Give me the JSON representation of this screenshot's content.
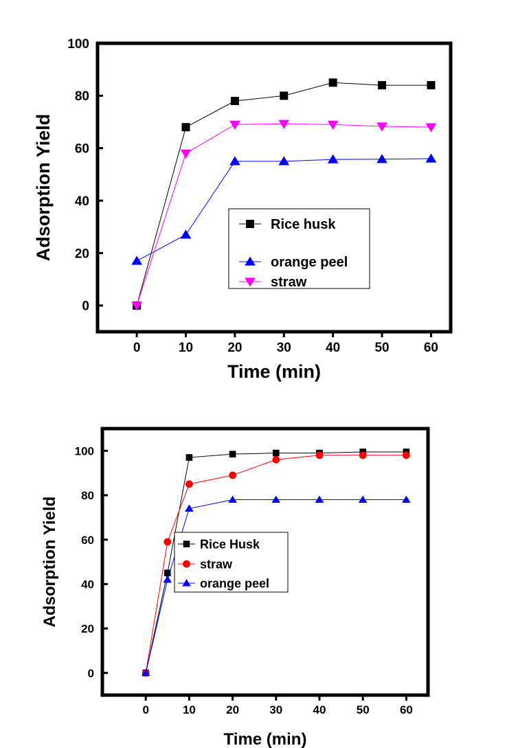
{
  "chart_data": [
    {
      "type": "line",
      "title": "",
      "xlabel": "Time (min)",
      "ylabel": "Adsorption Yield",
      "xlim": [
        -8,
        64
      ],
      "ylim": [
        -10,
        100
      ],
      "xticks": [
        0,
        10,
        20,
        30,
        40,
        50,
        60
      ],
      "yticks": [
        0,
        20,
        40,
        60,
        80,
        100
      ],
      "grid": false,
      "legend_position": "center-right",
      "series": [
        {
          "name": "Rice husk",
          "color": "#000000",
          "marker": "square",
          "x": [
            0,
            10,
            20,
            30,
            40,
            50,
            60
          ],
          "y": [
            0,
            68,
            78,
            80,
            85,
            84,
            84
          ]
        },
        {
          "name": "orange peel",
          "color": "#0000ff",
          "marker": "triangle-up",
          "x": [
            0,
            10,
            20,
            30,
            40,
            50,
            60
          ],
          "y": [
            17,
            27,
            55,
            55,
            55.7,
            55.8,
            56
          ]
        },
        {
          "name": "straw",
          "color": "#ff00ff",
          "marker": "triangle-down",
          "x": [
            0,
            10,
            20,
            30,
            40,
            50,
            60
          ],
          "y": [
            0,
            58,
            69,
            69.3,
            69,
            68.3,
            68
          ]
        }
      ]
    },
    {
      "type": "line",
      "title": "",
      "xlabel": "Time (min)",
      "ylabel": "Adsorption Yield",
      "xlim": [
        -10,
        65
      ],
      "ylim": [
        -10,
        110
      ],
      "xticks": [
        0,
        10,
        20,
        30,
        40,
        50,
        60
      ],
      "yticks": [
        0,
        20,
        40,
        60,
        80,
        100
      ],
      "grid": false,
      "legend_position": "center-left",
      "series": [
        {
          "name": "Rice Husk",
          "color": "#000000",
          "marker": "square",
          "x": [
            0,
            5,
            10,
            20,
            30,
            40,
            50,
            60
          ],
          "y": [
            0,
            45,
            97,
            98.5,
            99,
            99,
            99.5,
            99.5
          ]
        },
        {
          "name": "straw",
          "color": "#ff0000",
          "marker": "circle",
          "x": [
            0,
            5,
            10,
            20,
            30,
            40,
            50,
            60
          ],
          "y": [
            0,
            59,
            85,
            89,
            96,
            98,
            98,
            98
          ]
        },
        {
          "name": "orange peel",
          "color": "#0000ff",
          "marker": "triangle-up",
          "x": [
            0,
            5,
            10,
            20,
            30,
            40,
            50,
            60
          ],
          "y": [
            0,
            42,
            74,
            78,
            78,
            78,
            78,
            78
          ]
        }
      ]
    }
  ]
}
